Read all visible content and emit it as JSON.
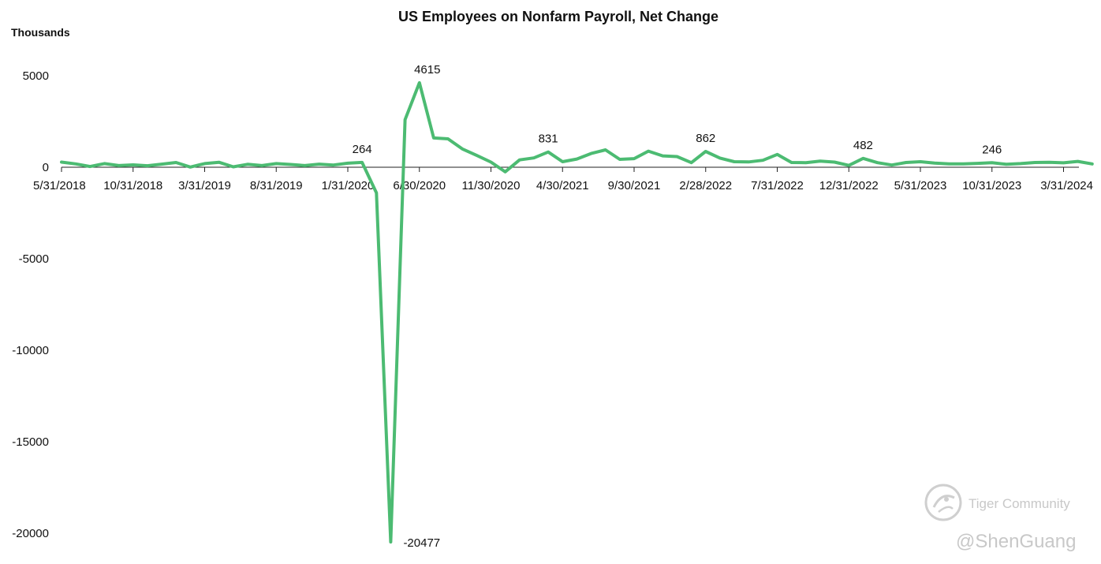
{
  "chart_data": {
    "type": "line",
    "title": "US Employees on Nonfarm Payroll, Net Change",
    "ylabel": "Thousands",
    "xlabel": "",
    "ylim": [
      -21000,
      5000
    ],
    "yticks": [
      5000,
      0,
      -5000,
      -10000,
      -15000,
      -20000
    ],
    "grid": false,
    "legend": "none",
    "color": "#4cbb72",
    "xtick_labels": [
      "5/31/2018",
      "10/31/2018",
      "3/31/2019",
      "8/31/2019",
      "1/31/2020",
      "6/30/2020",
      "11/30/2020",
      "4/30/2021",
      "9/30/2021",
      "2/28/2022",
      "7/31/2022",
      "12/31/2022",
      "5/31/2023",
      "10/31/2023",
      "3/31/2024"
    ],
    "x": [
      "5/31/2018",
      "6/30/2018",
      "7/31/2018",
      "8/31/2018",
      "9/30/2018",
      "10/31/2018",
      "11/30/2018",
      "12/31/2018",
      "1/31/2019",
      "2/28/2019",
      "3/31/2019",
      "4/30/2019",
      "5/31/2019",
      "6/30/2019",
      "7/31/2019",
      "8/31/2019",
      "9/30/2019",
      "10/31/2019",
      "11/30/2019",
      "12/31/2019",
      "1/31/2020",
      "2/29/2020",
      "3/31/2020",
      "4/30/2020",
      "5/31/2020",
      "6/30/2020",
      "7/31/2020",
      "8/31/2020",
      "9/30/2020",
      "10/31/2020",
      "11/30/2020",
      "12/31/2020",
      "1/31/2021",
      "2/28/2021",
      "3/31/2021",
      "4/30/2021",
      "5/31/2021",
      "6/30/2021",
      "7/31/2021",
      "8/31/2021",
      "9/30/2021",
      "10/31/2021",
      "11/30/2021",
      "12/31/2021",
      "1/31/2022",
      "2/28/2022",
      "3/31/2022",
      "4/30/2022",
      "5/31/2022",
      "6/30/2022",
      "7/31/2022",
      "8/31/2022",
      "9/30/2022",
      "10/31/2022",
      "11/30/2022",
      "12/31/2022",
      "1/31/2023",
      "2/28/2023",
      "3/31/2023",
      "4/30/2023",
      "5/31/2023",
      "6/30/2023",
      "7/31/2023",
      "8/31/2023",
      "9/30/2023",
      "10/31/2023",
      "11/30/2023",
      "12/31/2023",
      "1/31/2024",
      "2/29/2024",
      "3/31/2024",
      "4/30/2024",
      "5/31/2024"
    ],
    "values": [
      280,
      180,
      40,
      200,
      90,
      130,
      80,
      170,
      260,
      10,
      200,
      270,
      20,
      160,
      90,
      200,
      150,
      90,
      170,
      120,
      220,
      264,
      -1400,
      -20477,
      2600,
      4615,
      1600,
      1550,
      1000,
      650,
      280,
      -250,
      400,
      510,
      831,
      300,
      450,
      750,
      950,
      430,
      470,
      880,
      620,
      580,
      250,
      862,
      500,
      300,
      290,
      380,
      700,
      260,
      250,
      330,
      280,
      100,
      482,
      250,
      120,
      260,
      300,
      230,
      180,
      180,
      210,
      246,
      160,
      200,
      260,
      270,
      240,
      320,
      180
    ],
    "data_labels": [
      {
        "x": "2/29/2020",
        "text": "264"
      },
      {
        "x": "4/30/2020",
        "text": "-20477"
      },
      {
        "x": "6/30/2020",
        "text": "4615"
      },
      {
        "x": "3/31/2021",
        "text": "831"
      },
      {
        "x": "2/28/2022",
        "text": "862"
      },
      {
        "x": "1/31/2023",
        "text": "482"
      },
      {
        "x": "10/31/2023",
        "text": "246"
      }
    ]
  },
  "watermark": {
    "brand": "Tiger Community",
    "handle": "@ShenGuang"
  }
}
